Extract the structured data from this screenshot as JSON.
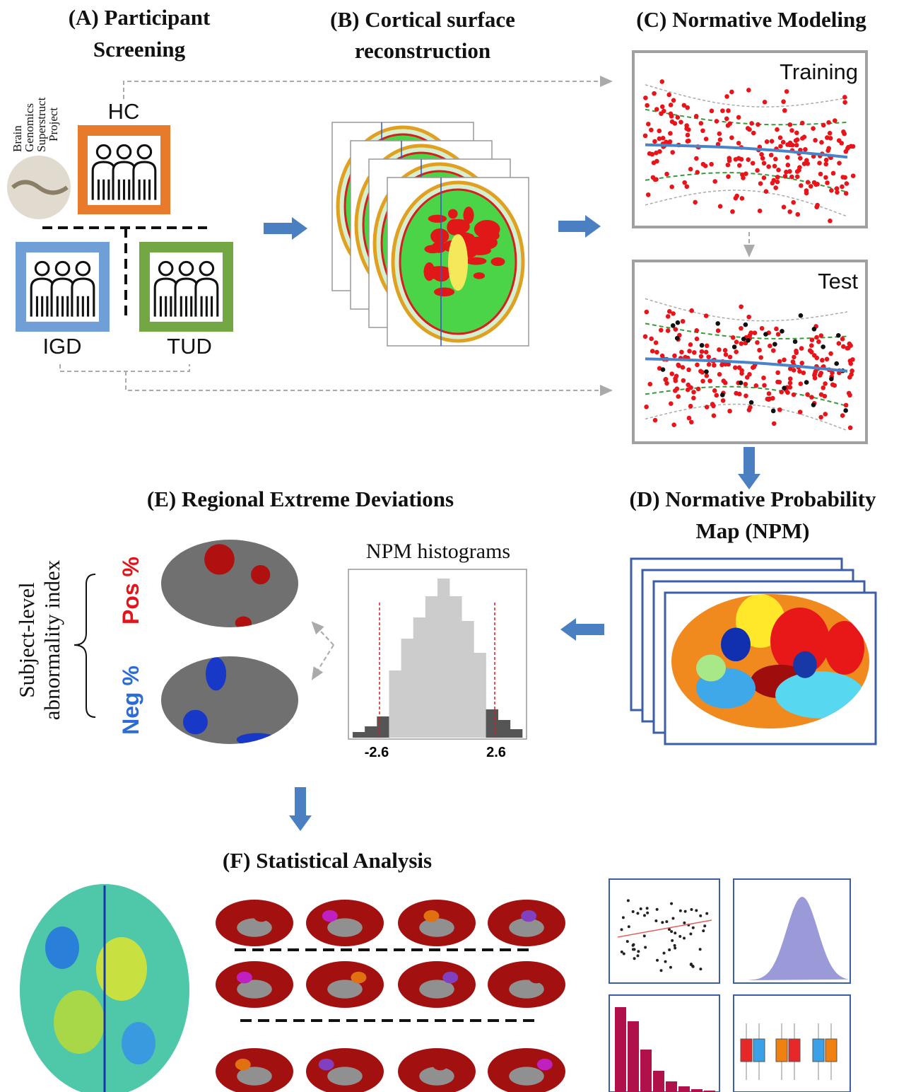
{
  "panels": {
    "A": {
      "title": [
        "(A) Participant",
        "Screening"
      ],
      "logo": [
        "Brain",
        "Genomics",
        "Superstruct",
        "Project"
      ],
      "groups": [
        "HC",
        "IGD",
        "TUD"
      ]
    },
    "B": {
      "title": [
        "(B) Cortical surface",
        "reconstruction"
      ]
    },
    "C": {
      "title": "(C) Normative Modeling",
      "plots": [
        "Training",
        "Test"
      ]
    },
    "D": {
      "title": [
        "(D) Normative Probability",
        "Map (NPM)"
      ]
    },
    "E": {
      "title": "(E) Regional Extreme Deviations",
      "histogram_title": "NPM histograms",
      "thresholds": [
        -2.6,
        2.6
      ],
      "index_label": [
        "Subject-level",
        "abnormality index"
      ],
      "measures": [
        "Pos %",
        "Neg %"
      ]
    },
    "F": {
      "title": "(F) Statistical Analysis"
    }
  }
}
